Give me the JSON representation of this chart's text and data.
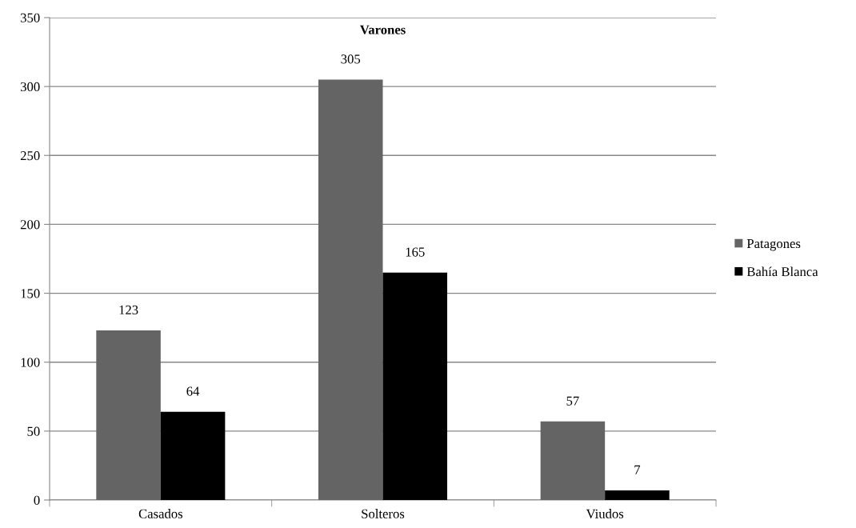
{
  "chart_data": {
    "type": "bar",
    "title": "Varones",
    "categories": [
      "Casados",
      "Solteros",
      "Viudos"
    ],
    "series": [
      {
        "name": "Patagones",
        "color": "#646464",
        "values": [
          123,
          305,
          57
        ]
      },
      {
        "name": "Bahía Blanca",
        "color": "#000000",
        "values": [
          64,
          165,
          7
        ]
      }
    ],
    "ylim": [
      0,
      350
    ],
    "yticks": [
      0,
      50,
      100,
      150,
      200,
      250,
      300,
      350
    ],
    "grid": "y",
    "legend": "right",
    "data_labels": true
  }
}
